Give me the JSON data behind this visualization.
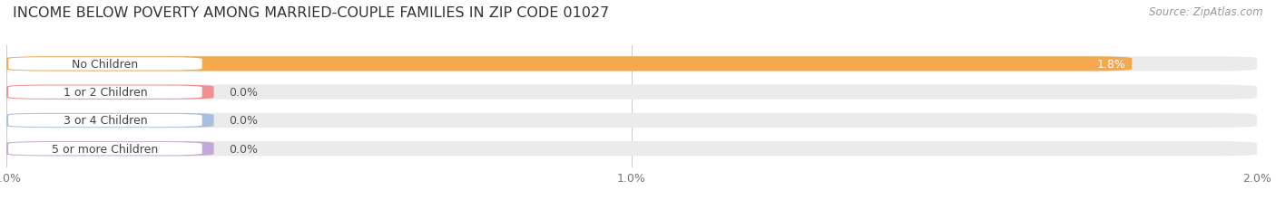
{
  "title": "INCOME BELOW POVERTY AMONG MARRIED-COUPLE FAMILIES IN ZIP CODE 01027",
  "source": "Source: ZipAtlas.com",
  "categories": [
    "No Children",
    "1 or 2 Children",
    "3 or 4 Children",
    "5 or more Children"
  ],
  "values": [
    1.8,
    0.0,
    0.0,
    0.0
  ],
  "bar_colors": [
    "#F5A94E",
    "#F09090",
    "#A8C0E0",
    "#C4A8D8"
  ],
  "value_labels": [
    "1.8%",
    "0.0%",
    "0.0%",
    "0.0%"
  ],
  "label_inside": [
    true,
    false,
    false,
    false
  ],
  "background_color": "#ffffff",
  "bar_bg_color": "#ebebeb",
  "bar_bg_color2": "#f0f0f0",
  "xlim": [
    0,
    2.0
  ],
  "xticks": [
    0.0,
    1.0,
    2.0
  ],
  "xtick_labels": [
    "0.0%",
    "1.0%",
    "2.0%"
  ],
  "title_fontsize": 11.5,
  "label_fontsize": 9,
  "tick_fontsize": 9,
  "source_fontsize": 8.5
}
